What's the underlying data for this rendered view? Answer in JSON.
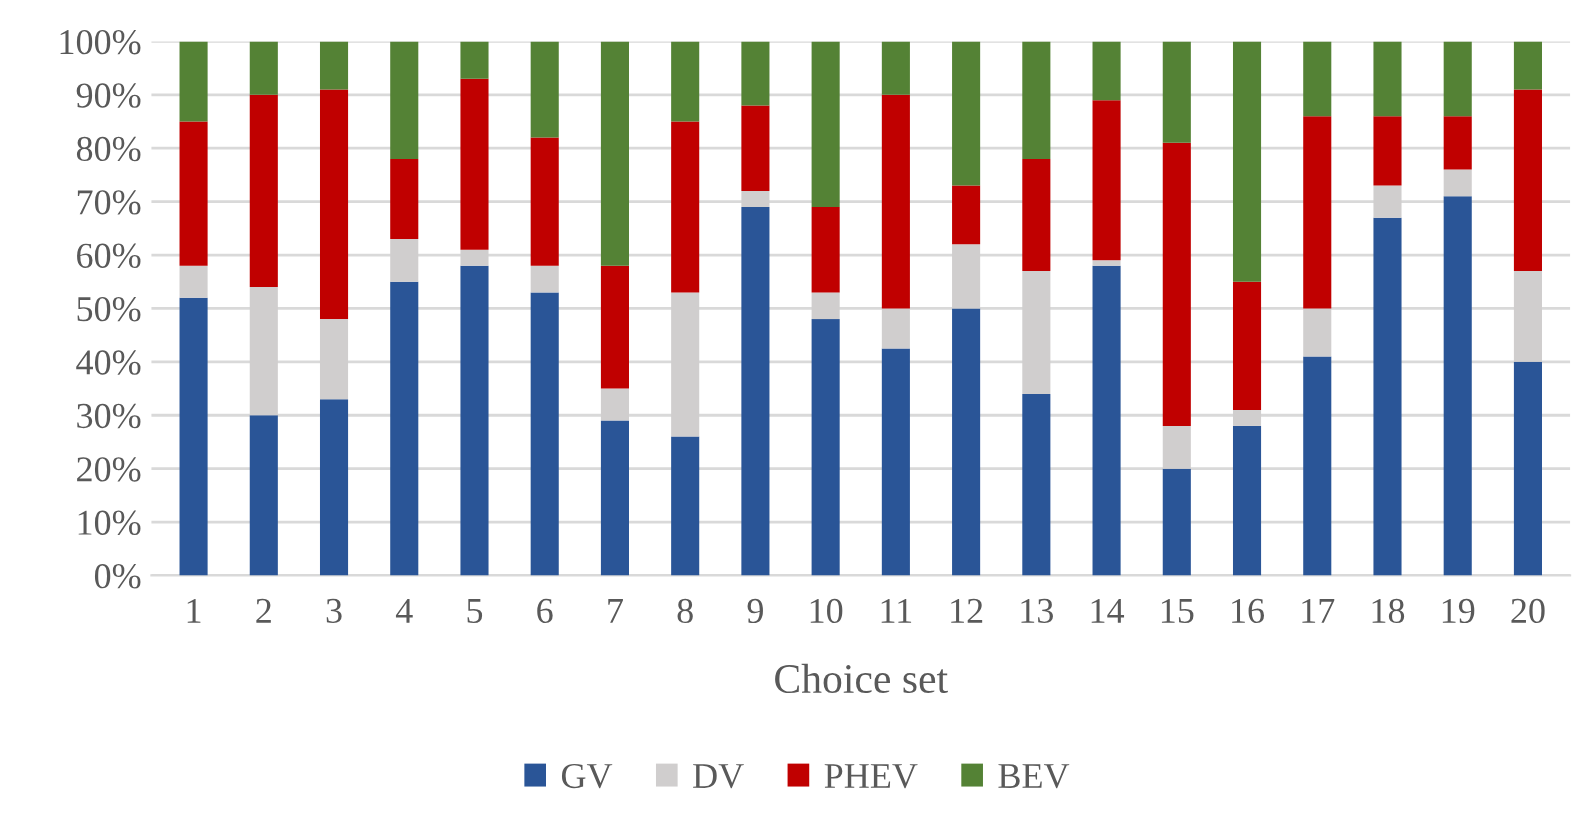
{
  "chart_data": {
    "type": "bar",
    "stacked": true,
    "xlabel": "Choice set",
    "categories": [
      "1",
      "2",
      "3",
      "4",
      "5",
      "6",
      "7",
      "8",
      "9",
      "10",
      "11",
      "12",
      "13",
      "14",
      "15",
      "16",
      "17",
      "18",
      "19",
      "20"
    ],
    "series": [
      {
        "name": "GV",
        "color": "#2a5597",
        "values": [
          52,
          30,
          33,
          55,
          58,
          53,
          29,
          26,
          69,
          48,
          42.5,
          50,
          34,
          58,
          20,
          28,
          41,
          67,
          71,
          40
        ]
      },
      {
        "name": "DV",
        "color": "#d0cece",
        "values": [
          6,
          24,
          15,
          8,
          3,
          5,
          6,
          27,
          3,
          5,
          7.5,
          12,
          23,
          1,
          8,
          3,
          9,
          6,
          5,
          17
        ]
      },
      {
        "name": "PHEV",
        "color": "#c00000",
        "values": [
          27,
          36,
          43,
          15,
          32,
          24,
          23,
          32,
          16,
          16,
          40,
          11,
          21,
          30,
          53,
          24,
          36,
          13,
          10,
          34
        ]
      },
      {
        "name": "BEV",
        "color": "#548235",
        "values": [
          15,
          10,
          9,
          22,
          7,
          18,
          42,
          15,
          12,
          31,
          10,
          27,
          22,
          11,
          19,
          45,
          14,
          14,
          14,
          9
        ]
      }
    ],
    "ylim": [
      0,
      100
    ],
    "yticks": [
      {
        "value": 0,
        "label": "0%"
      },
      {
        "value": 10,
        "label": "10%"
      },
      {
        "value": 20,
        "label": "20%"
      },
      {
        "value": 30,
        "label": "30%"
      },
      {
        "value": 40,
        "label": "40%"
      },
      {
        "value": 50,
        "label": "50%"
      },
      {
        "value": 60,
        "label": "60%"
      },
      {
        "value": 70,
        "label": "70%"
      },
      {
        "value": 80,
        "label": "80%"
      },
      {
        "value": 90,
        "label": "90%"
      },
      {
        "value": 100,
        "label": "100%"
      }
    ],
    "grid": "y",
    "legend": "bottom"
  }
}
